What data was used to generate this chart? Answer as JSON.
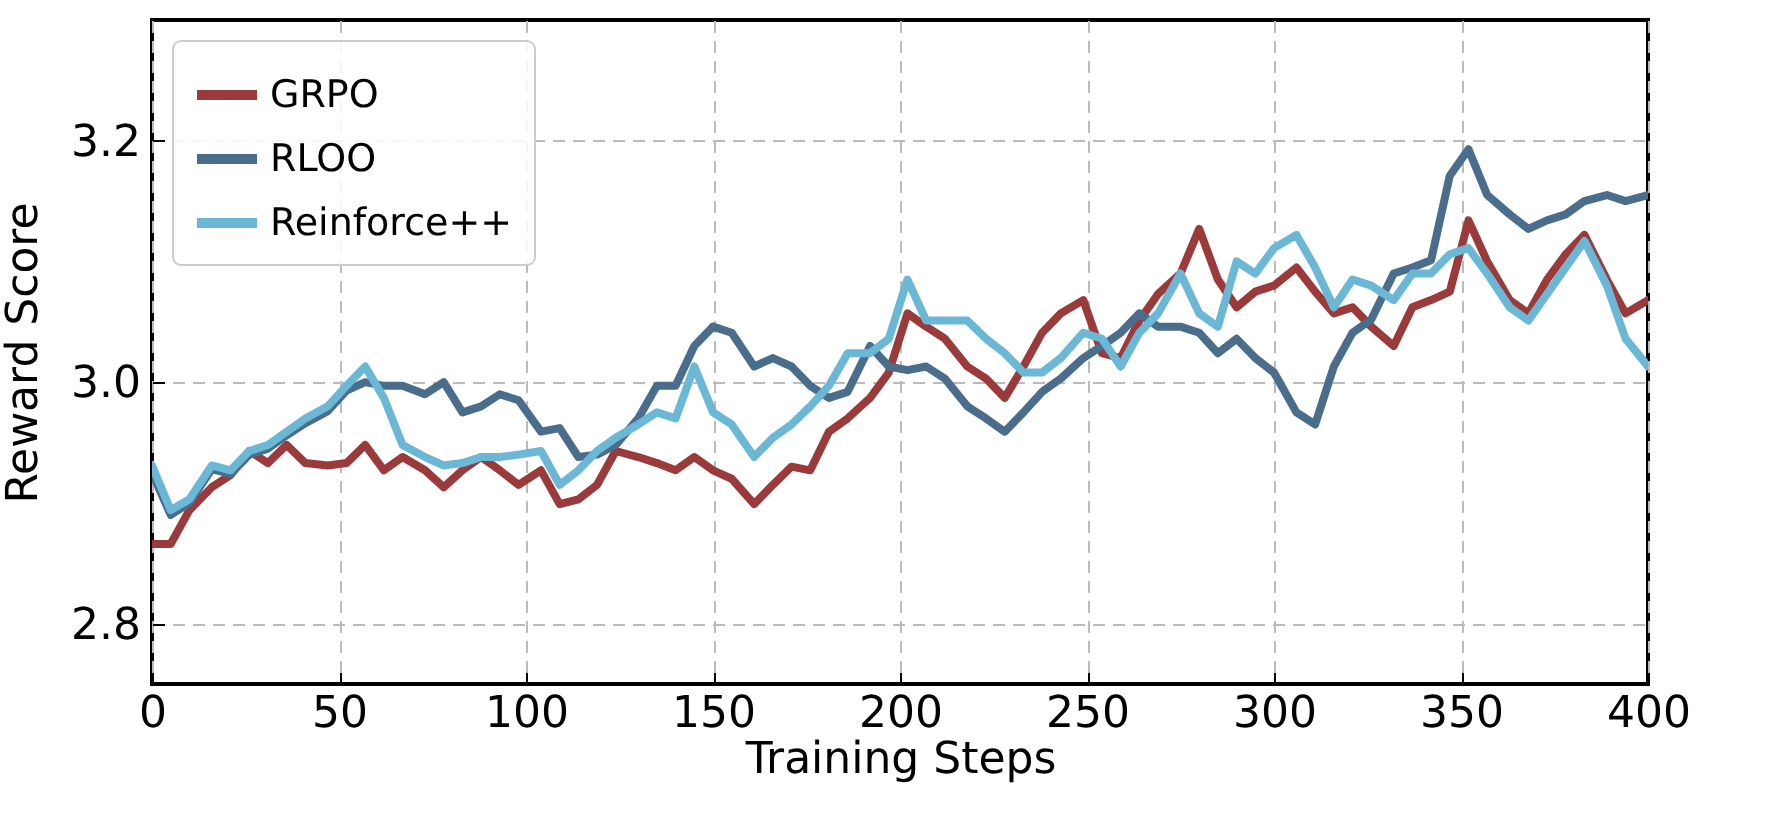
{
  "chart_data": {
    "type": "line",
    "xlabel": "Training Steps",
    "ylabel": "Reward Score",
    "x": [
      0,
      5,
      10,
      16,
      21,
      26,
      31,
      36,
      41,
      47,
      52,
      57,
      62,
      67,
      73,
      78,
      83,
      88,
      93,
      98,
      104,
      109,
      114,
      119,
      124,
      130,
      135,
      140,
      145,
      150,
      155,
      161,
      166,
      171,
      176,
      181,
      186,
      192,
      197,
      202,
      207,
      212,
      218,
      223,
      228,
      233,
      238,
      243,
      249,
      254,
      259,
      264,
      269,
      275,
      280,
      285,
      290,
      295,
      300,
      306,
      311,
      316,
      321,
      326,
      332,
      337,
      342,
      347,
      352,
      357,
      363,
      368,
      373,
      378,
      383,
      389,
      394,
      400
    ],
    "series": [
      {
        "name": "GRPO",
        "color": "#9b3a3a",
        "values": [
          2.866,
          2.866,
          2.894,
          2.913,
          2.923,
          2.943,
          2.933,
          2.948,
          2.933,
          2.931,
          2.933,
          2.948,
          2.927,
          2.938,
          2.927,
          2.913,
          2.927,
          2.938,
          2.927,
          2.915,
          2.927,
          2.899,
          2.903,
          2.915,
          2.943,
          2.938,
          2.933,
          2.927,
          2.938,
          2.927,
          2.92,
          2.899,
          2.915,
          2.93,
          2.927,
          2.959,
          2.97,
          2.987,
          3.008,
          3.057,
          3.046,
          3.036,
          3.013,
          3.003,
          2.987,
          3.013,
          3.041,
          3.057,
          3.068,
          3.024,
          3.02,
          3.051,
          3.073,
          3.09,
          3.127,
          3.085,
          3.062,
          3.075,
          3.08,
          3.095,
          3.075,
          3.057,
          3.062,
          3.046,
          3.03,
          3.062,
          3.068,
          3.075,
          3.134,
          3.1,
          3.068,
          3.057,
          3.085,
          3.106,
          3.122,
          3.085,
          3.057,
          3.068
        ]
      },
      {
        "name": "RLOO",
        "color": "#4a6d8c",
        "values": [
          2.925,
          2.89,
          2.9,
          2.928,
          2.924,
          2.94,
          2.945,
          2.956,
          2.966,
          2.976,
          2.993,
          3.0,
          2.997,
          2.997,
          2.99,
          3.0,
          2.975,
          2.98,
          2.99,
          2.985,
          2.959,
          2.962,
          2.938,
          2.94,
          2.948,
          2.97,
          2.997,
          2.997,
          3.03,
          3.046,
          3.041,
          3.013,
          3.02,
          3.013,
          2.997,
          2.987,
          2.992,
          3.03,
          3.013,
          3.01,
          3.013,
          3.003,
          2.98,
          2.97,
          2.959,
          2.975,
          2.992,
          3.003,
          3.02,
          3.03,
          3.041,
          3.057,
          3.046,
          3.046,
          3.041,
          3.024,
          3.036,
          3.02,
          3.008,
          2.975,
          2.965,
          3.013,
          3.041,
          3.052,
          3.09,
          3.095,
          3.101,
          3.171,
          3.193,
          3.155,
          3.139,
          3.127,
          3.134,
          3.139,
          3.15,
          3.155,
          3.15,
          3.155
        ]
      },
      {
        "name": "Reinforce++",
        "color": "#6bb8d6",
        "values": [
          2.931,
          2.894,
          2.903,
          2.931,
          2.927,
          2.943,
          2.948,
          2.959,
          2.97,
          2.98,
          2.997,
          3.013,
          2.987,
          2.948,
          2.938,
          2.931,
          2.933,
          2.938,
          2.938,
          2.94,
          2.943,
          2.915,
          2.927,
          2.943,
          2.954,
          2.965,
          2.975,
          2.97,
          3.013,
          2.975,
          2.965,
          2.938,
          2.954,
          2.965,
          2.98,
          2.997,
          3.024,
          3.024,
          3.036,
          3.085,
          3.051,
          3.051,
          3.051,
          3.036,
          3.024,
          3.008,
          3.008,
          3.02,
          3.041,
          3.036,
          3.013,
          3.041,
          3.057,
          3.09,
          3.057,
          3.046,
          3.1,
          3.09,
          3.111,
          3.122,
          3.095,
          3.062,
          3.085,
          3.08,
          3.068,
          3.09,
          3.09,
          3.106,
          3.111,
          3.09,
          3.062,
          3.051,
          3.073,
          3.095,
          3.117,
          3.08,
          3.036,
          3.013
        ]
      }
    ],
    "xlim": [
      0,
      400
    ],
    "xticks": [
      0,
      50,
      100,
      150,
      200,
      250,
      300,
      350,
      400
    ],
    "ylim": [
      2.75,
      3.3
    ],
    "yticks": [
      {
        "value": 2.8,
        "label": "2.8"
      },
      {
        "value": 3.0,
        "label": "3.0"
      },
      {
        "value": 3.2,
        "label": "3.2"
      }
    ],
    "grid": true,
    "legend": "top left",
    "line_style": "solid",
    "marker": "none"
  }
}
